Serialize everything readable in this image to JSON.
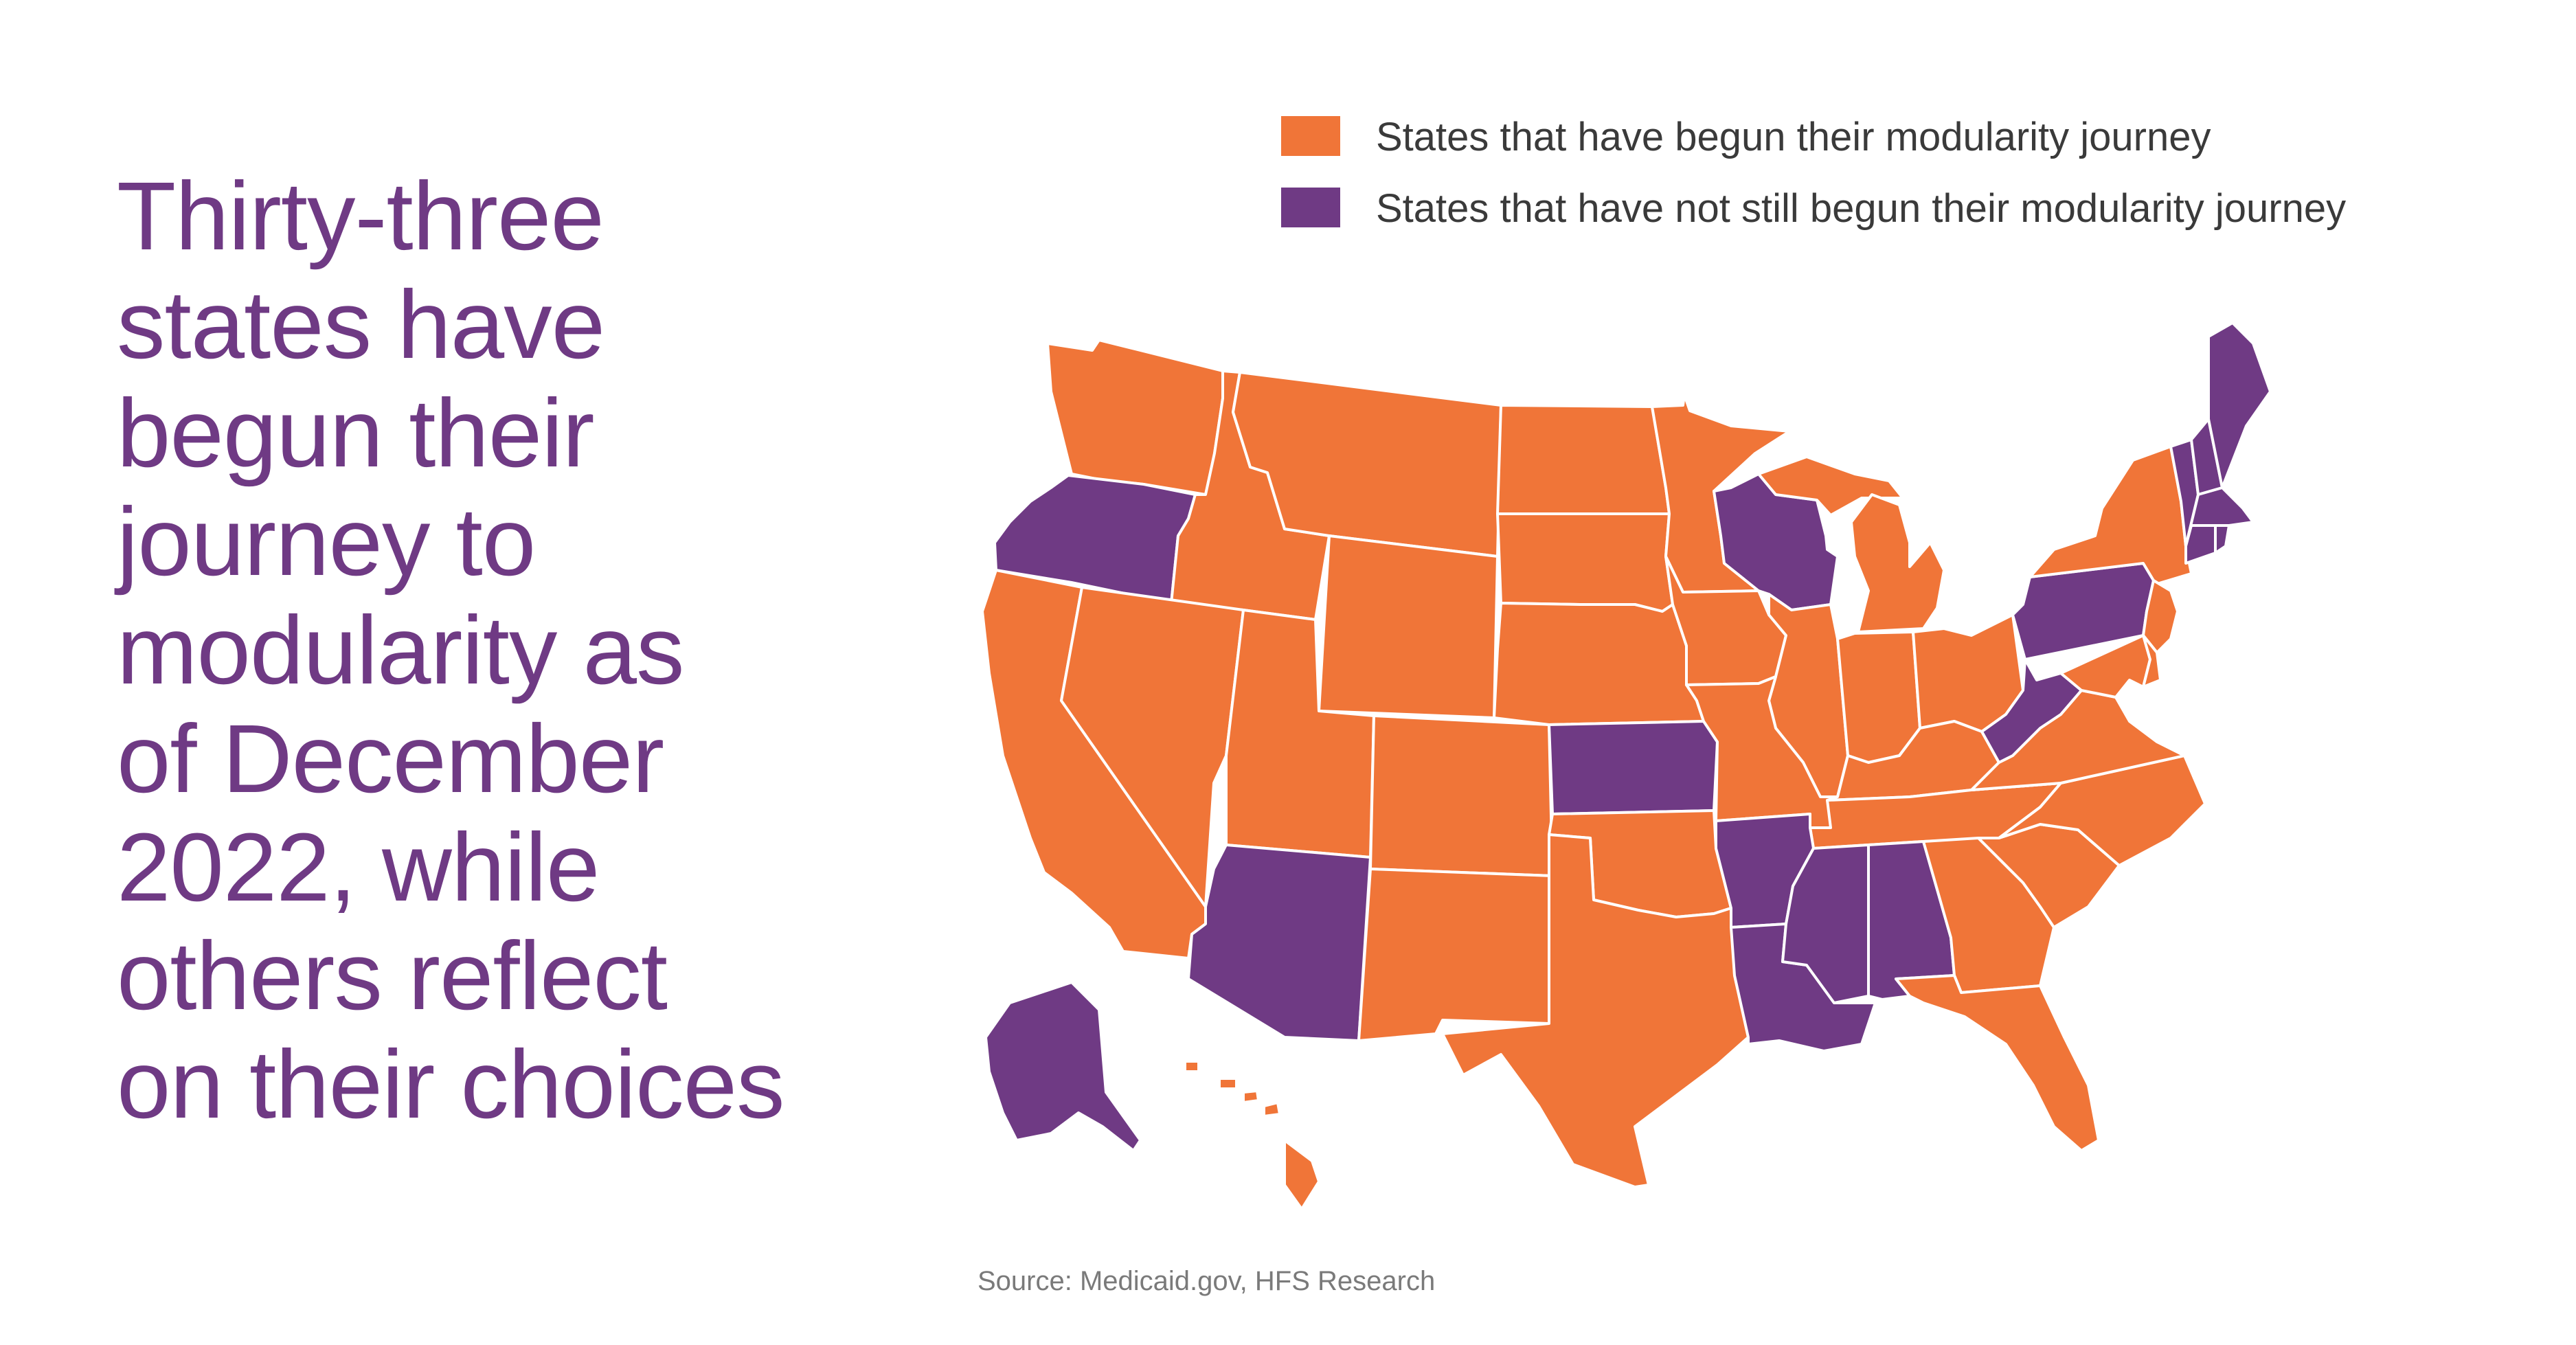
{
  "headline": {
    "lines": [
      "Thirty-three",
      "states have",
      "begun their",
      "journey to",
      "modularity as",
      "of December",
      "2022, while",
      "others reflect",
      "on their choices"
    ]
  },
  "legend": [
    {
      "label": "States that have begun their modularity journey",
      "color": "#f07538"
    },
    {
      "label": "States that have not still begun their modularity journey",
      "color": "#6f3a84"
    }
  ],
  "map": {
    "begun_color": "#f07538",
    "not_begun_color": "#6f3a84",
    "begun_states": [
      "WA",
      "ID",
      "MT",
      "ND",
      "SD",
      "MN",
      "WY",
      "NE",
      "IA",
      "IL",
      "MI",
      "IN",
      "OH",
      "NY",
      "NJ",
      "CA",
      "NV",
      "UT",
      "CO",
      "MO",
      "KY",
      "VA",
      "NC",
      "TN",
      "SC",
      "GA",
      "FL",
      "NM",
      "OK",
      "TX",
      "MD",
      "DE",
      "HI"
    ],
    "not_begun_states": [
      "OR",
      "WI",
      "PA",
      "WV",
      "KS",
      "AZ",
      "AR",
      "LA",
      "MS",
      "AL",
      "ME",
      "NH",
      "VT",
      "MA",
      "CT",
      "RI",
      "AK"
    ]
  },
  "source": "Source: Medicaid.gov, HFS Research"
}
